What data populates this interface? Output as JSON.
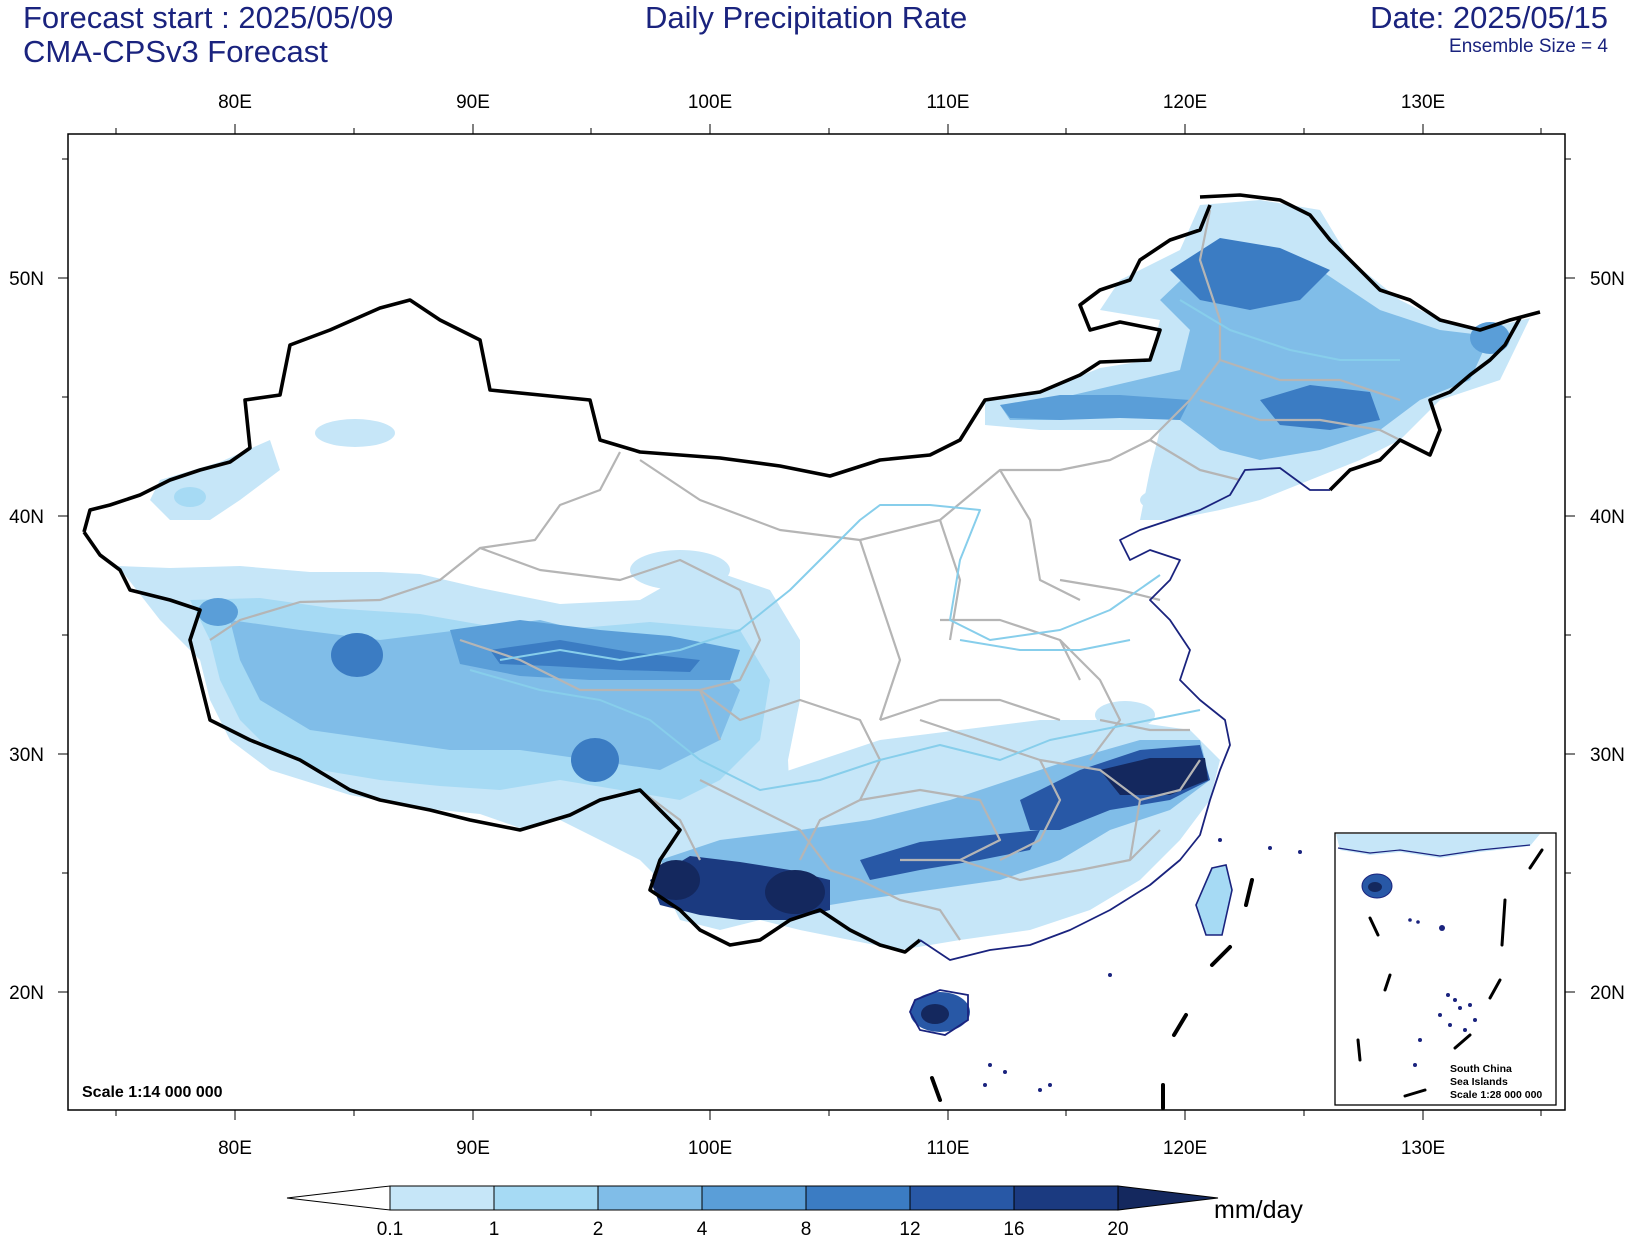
{
  "header": {
    "forecast_start": "Forecast start : 2025/05/09",
    "model": "CMA-CPSv3 Forecast",
    "title": "Daily Precipitation Rate",
    "date": "Date: 2025/05/15",
    "ensemble": "Ensemble Size = 4"
  },
  "axes": {
    "lon_labels": [
      "80E",
      "90E",
      "100E",
      "110E",
      "120E",
      "130E"
    ],
    "lat_labels": [
      "50N",
      "40N",
      "30N",
      "20N"
    ]
  },
  "map": {
    "scale_label": "Scale 1:14 000 000"
  },
  "inset": {
    "label_line1": "South China",
    "label_line2": "Sea Islands",
    "label_line3": "Scale 1:28 000 000"
  },
  "colorbar": {
    "unit": "mm/day",
    "ticks": [
      "0.1",
      "1",
      "2",
      "4",
      "8",
      "12",
      "16",
      "20"
    ],
    "colors": [
      "#ffffff",
      "#c6e6f8",
      "#a6daf4",
      "#80bde8",
      "#5a9ed8",
      "#3b7cc3",
      "#2858a6",
      "#1b3a80",
      "#14285e"
    ]
  }
}
